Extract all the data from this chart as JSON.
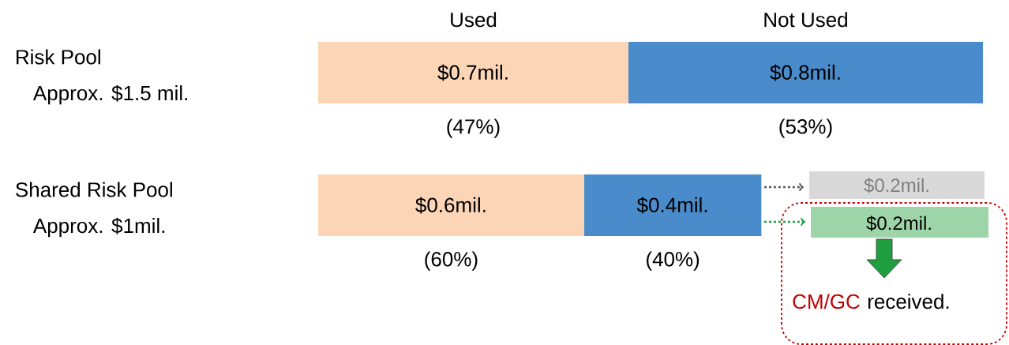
{
  "chart_data": {
    "type": "bar",
    "orientation": "horizontal",
    "stacked": true,
    "tick_labels": "y",
    "categories": [
      "Risk Pool",
      "Shared Risk Pool"
    ],
    "series": [
      {
        "name": "Used",
        "color": "#fbd5b5",
        "values": [
          0.7,
          0.6
        ],
        "value_labels": [
          "$0.7mil.",
          "$0.6mil."
        ]
      },
      {
        "name": "Not Used",
        "color": "#4a8ccb",
        "values": [
          0.8,
          0.4
        ],
        "value_labels": [
          "$0.8mil.",
          "$0.4mil."
        ]
      }
    ],
    "annotations": [
      "Approx. $1.5 mil.",
      "Approx. $1mil.",
      "(47%)",
      "(53%)",
      "(60%)",
      "(40%)",
      "$0.2mil.",
      "$0.2mil.",
      "CM/GC",
      "received."
    ]
  }
}
